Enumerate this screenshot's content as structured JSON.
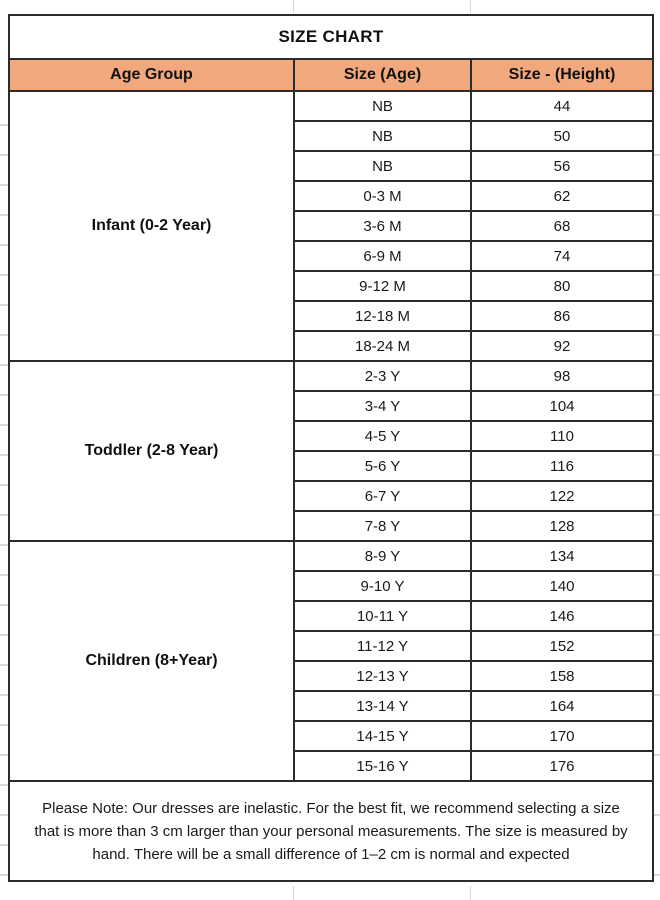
{
  "title": "SIZE CHART",
  "chart_data": {
    "type": "table",
    "title": "SIZE CHART",
    "columns": [
      "Age Group",
      "Size (Age)",
      "Size - (Height)"
    ],
    "groups": [
      {
        "label": "Infant (0-2 Year)",
        "rows": [
          {
            "size_age": "NB",
            "height": "44"
          },
          {
            "size_age": "NB",
            "height": "50"
          },
          {
            "size_age": "NB",
            "height": "56"
          },
          {
            "size_age": "0-3 M",
            "height": "62"
          },
          {
            "size_age": "3-6 M",
            "height": "68"
          },
          {
            "size_age": "6-9 M",
            "height": "74"
          },
          {
            "size_age": "9-12 M",
            "height": "80"
          },
          {
            "size_age": "12-18 M",
            "height": "86"
          },
          {
            "size_age": "18-24 M",
            "height": "92"
          }
        ]
      },
      {
        "label": "Toddler (2-8 Year)",
        "rows": [
          {
            "size_age": "2-3 Y",
            "height": "98"
          },
          {
            "size_age": "3-4 Y",
            "height": "104"
          },
          {
            "size_age": "4-5 Y",
            "height": "110"
          },
          {
            "size_age": "5-6 Y",
            "height": "116"
          },
          {
            "size_age": "6-7 Y",
            "height": "122"
          },
          {
            "size_age": "7-8 Y",
            "height": "128"
          }
        ]
      },
      {
        "label": "Children (8+Year)",
        "rows": [
          {
            "size_age": "8-9 Y",
            "height": "134"
          },
          {
            "size_age": "9-10 Y",
            "height": "140"
          },
          {
            "size_age": "10-11 Y",
            "height": "146"
          },
          {
            "size_age": "11-12 Y",
            "height": "152"
          },
          {
            "size_age": "12-13 Y",
            "height": "158"
          },
          {
            "size_age": "13-14 Y",
            "height": "164"
          },
          {
            "size_age": "14-15 Y",
            "height": "170"
          },
          {
            "size_age": "15-16 Y",
            "height": "176"
          }
        ]
      }
    ],
    "note": "Please Note: Our dresses are inelastic. For the best fit, we recommend selecting a size that is more than 3 cm larger than your personal measurements. The size is measured by hand. There will be a small difference of 1–2 cm is normal and expected"
  },
  "colors": {
    "header_bg": "#F1A87C",
    "border": "#2b2b2b",
    "text": "#1a1a1a",
    "gridline": "#d9d9d9"
  }
}
